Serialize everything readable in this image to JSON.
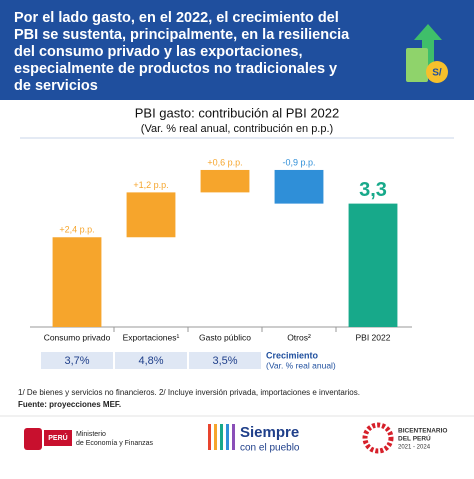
{
  "header": {
    "title_lines": [
      "Por el lado gasto, en el 2022, el crecimiento del",
      "PBI se sustenta, principalmente, en la resiliencia",
      "del consumo privado y las exportaciones,",
      "especialmente de productos no tradicionales y",
      "de servicios"
    ]
  },
  "chart_data": {
    "type": "waterfall",
    "title": "PBI gasto: contribución al PBI 2022",
    "subtitle": "(Var. % real anual, contribución en p.p.)",
    "categories": [
      "Consumo privado",
      "Exportaciones¹",
      "Gasto público",
      "Otros²",
      "PBI 2022"
    ],
    "values": [
      2.4,
      1.2,
      0.6,
      -0.9,
      3.3
    ],
    "value_labels": [
      "+2,4 p.p.",
      "+1,2 p.p.",
      "+0,6 p.p.",
      "-0,9 p.p.",
      "3,3"
    ],
    "totals": [
      false,
      false,
      false,
      false,
      true
    ],
    "colors": [
      "#f6a52c",
      "#f6a52c",
      "#f6a52c",
      "#2f8fd8",
      "#17a98a"
    ],
    "ylim": [
      0,
      4.6
    ]
  },
  "growth_row": {
    "values": [
      "3,7%",
      "4,8%",
      "3,5%"
    ],
    "label": "Crecimiento",
    "sublabel": "(Var. % real anual)"
  },
  "footnotes": {
    "note": "1/ De bienes y servicios no financieros. 2/ Incluye inversión privada, importaciones e inventarios.",
    "source": "Fuente: proyecciones MEF."
  },
  "logos": {
    "peru": "PERÚ",
    "ministry_line1": "Ministerio",
    "ministry_line2": "de Economía y Finanzas",
    "slogan_line1": "Siempre",
    "slogan_line2": "con el pueblo",
    "bicentenario_line1": "BICENTENARIO",
    "bicentenario_line2": "DEL PERÚ",
    "bicentenario_line3": "2021 - 2024"
  }
}
